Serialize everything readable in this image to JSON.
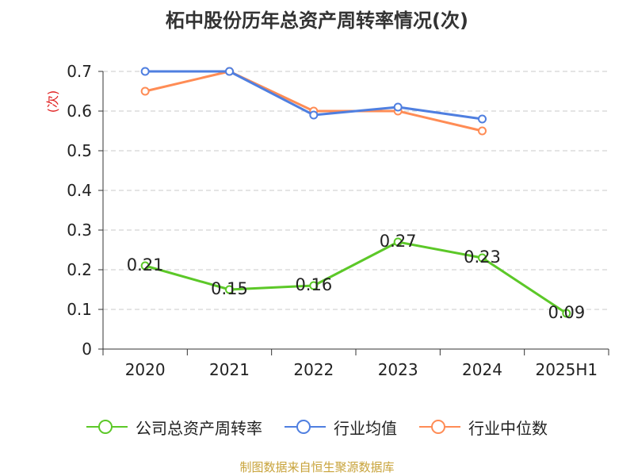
{
  "chart_data": {
    "type": "line",
    "title": "柘中股份历年总资产周转率情况(次)",
    "ylabel": "(次)",
    "categories": [
      "2020",
      "2021",
      "2022",
      "2023",
      "2024",
      "2025H1"
    ],
    "ylim": [
      0,
      0.7
    ],
    "yticks": [
      "0",
      "0.1",
      "0.2",
      "0.3",
      "0.4",
      "0.5",
      "0.6",
      "0.7"
    ],
    "grid": true,
    "legend_position": "bottom",
    "series": [
      {
        "name": "公司总资产周转率",
        "color": "#5cc828",
        "values": [
          0.21,
          0.15,
          0.16,
          0.27,
          0.23,
          0.09
        ],
        "labels": [
          "0.21",
          "0.15",
          "0.16",
          "0.27",
          "0.23",
          "0.09"
        ]
      },
      {
        "name": "行业均值",
        "color": "#4f7fe0",
        "values": [
          0.7,
          0.7,
          0.59,
          0.61,
          0.58,
          null
        ]
      },
      {
        "name": "行业中位数",
        "color": "#ff8c55",
        "values": [
          0.65,
          0.7,
          0.6,
          0.6,
          0.55,
          null
        ]
      }
    ]
  },
  "source": "制图数据来自恒生聚源数据库"
}
